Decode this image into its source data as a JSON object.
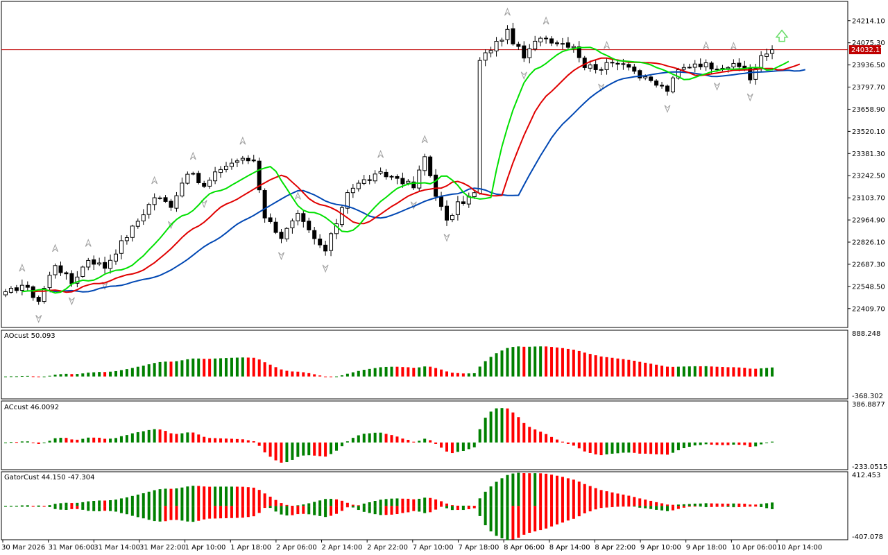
{
  "chart_data": {
    "type": "candlestick",
    "symbol_note": "",
    "current_price": {
      "value": 24032.17,
      "label": "24032.17",
      "color": "#c00000"
    },
    "price_axis": {
      "ylim": [
        22300,
        24300
      ],
      "ticks": [
        "24214.10",
        "24075.30",
        "23936.50",
        "23797.70",
        "23658.90",
        "23520.10",
        "23381.30",
        "23242.50",
        "23103.70",
        "22964.90",
        "22826.10",
        "22687.30",
        "22548.50",
        "22409.70"
      ]
    },
    "time_axis": {
      "ticks": [
        "30 Mar 2026",
        "31 Mar 06:00",
        "31 Mar 14:00",
        "31 Mar 22:00",
        "1 Apr 10:00",
        "1 Apr 18:00",
        "2 Apr 06:00",
        "2 Apr 14:00",
        "2 Apr 22:00",
        "7 Apr 10:00",
        "7 Apr 18:00",
        "8 Apr 06:00",
        "8 Apr 14:00",
        "8 Apr 22:00",
        "9 Apr 10:00",
        "9 Apr 18:00",
        "10 Apr 06:00",
        "10 Apr 14:00"
      ]
    },
    "anchors": [
      {
        "x": 0,
        "c": 22500
      },
      {
        "x": 3,
        "c": 22560
      },
      {
        "x": 6,
        "c": 22460
      },
      {
        "x": 9,
        "c": 22690
      },
      {
        "x": 12,
        "c": 22570
      },
      {
        "x": 15,
        "c": 22720
      },
      {
        "x": 18,
        "c": 22670
      },
      {
        "x": 21,
        "c": 22820
      },
      {
        "x": 24,
        "c": 22960
      },
      {
        "x": 27,
        "c": 23110
      },
      {
        "x": 30,
        "c": 23060
      },
      {
        "x": 33,
        "c": 23270
      },
      {
        "x": 36,
        "c": 23170
      },
      {
        "x": 39,
        "c": 23290
      },
      {
        "x": 42,
        "c": 23340
      },
      {
        "x": 45,
        "c": 23340
      },
      {
        "x": 47,
        "c": 22990
      },
      {
        "x": 50,
        "c": 22860
      },
      {
        "x": 53,
        "c": 22990
      },
      {
        "x": 56,
        "c": 22840
      },
      {
        "x": 58,
        "c": 22770
      },
      {
        "x": 60,
        "c": 22950
      },
      {
        "x": 62,
        "c": 23150
      },
      {
        "x": 65,
        "c": 23210
      },
      {
        "x": 68,
        "c": 23250
      },
      {
        "x": 71,
        "c": 23230
      },
      {
        "x": 74,
        "c": 23170
      },
      {
        "x": 76,
        "c": 23360
      },
      {
        "x": 78,
        "c": 23130
      },
      {
        "x": 80,
        "c": 22950
      },
      {
        "x": 82,
        "c": 23060
      },
      {
        "x": 85,
        "c": 23130
      },
      {
        "x": 86,
        "c": 23960
      },
      {
        "x": 88,
        "c": 24040
      },
      {
        "x": 91,
        "c": 24140
      },
      {
        "x": 94,
        "c": 23980
      },
      {
        "x": 97,
        "c": 24120
      },
      {
        "x": 100,
        "c": 24080
      },
      {
        "x": 103,
        "c": 24060
      },
      {
        "x": 105,
        "c": 23930
      },
      {
        "x": 108,
        "c": 23920
      },
      {
        "x": 111,
        "c": 23960
      },
      {
        "x": 113,
        "c": 23940
      },
      {
        "x": 115,
        "c": 23860
      },
      {
        "x": 117,
        "c": 23830
      },
      {
        "x": 120,
        "c": 23780
      },
      {
        "x": 122,
        "c": 23900
      },
      {
        "x": 125,
        "c": 23950
      },
      {
        "x": 128,
        "c": 23930
      },
      {
        "x": 131,
        "c": 23930
      },
      {
        "x": 134,
        "c": 23920
      },
      {
        "x": 135,
        "c": 23850
      },
      {
        "x": 137,
        "c": 23980
      },
      {
        "x": 139,
        "c": 24032
      }
    ],
    "ao": {
      "label": "AOcust 50.093",
      "ylim": [
        -368.302,
        888.248
      ],
      "ticks": [
        "888.248",
        "-368.302"
      ]
    },
    "ac": {
      "label": "ACcust 46.0092",
      "ylim": [
        -233.0515,
        386.8877
      ],
      "ticks": [
        "386.8877",
        "-233.0515"
      ]
    },
    "gator": {
      "label": "GatorCust 44.150 -47.304",
      "ylim": [
        -407.078,
        412.453
      ],
      "ticks": [
        "412.453",
        "-407.078"
      ]
    },
    "colors": {
      "up": "#008000",
      "down": "#ff0000",
      "jaw": "#0047b3",
      "teeth": "#e00000",
      "lips": "#00e000",
      "signal_arrow": "#66dd66",
      "fractal": "#a0a0a0"
    },
    "grid": false,
    "legend": "none"
  }
}
